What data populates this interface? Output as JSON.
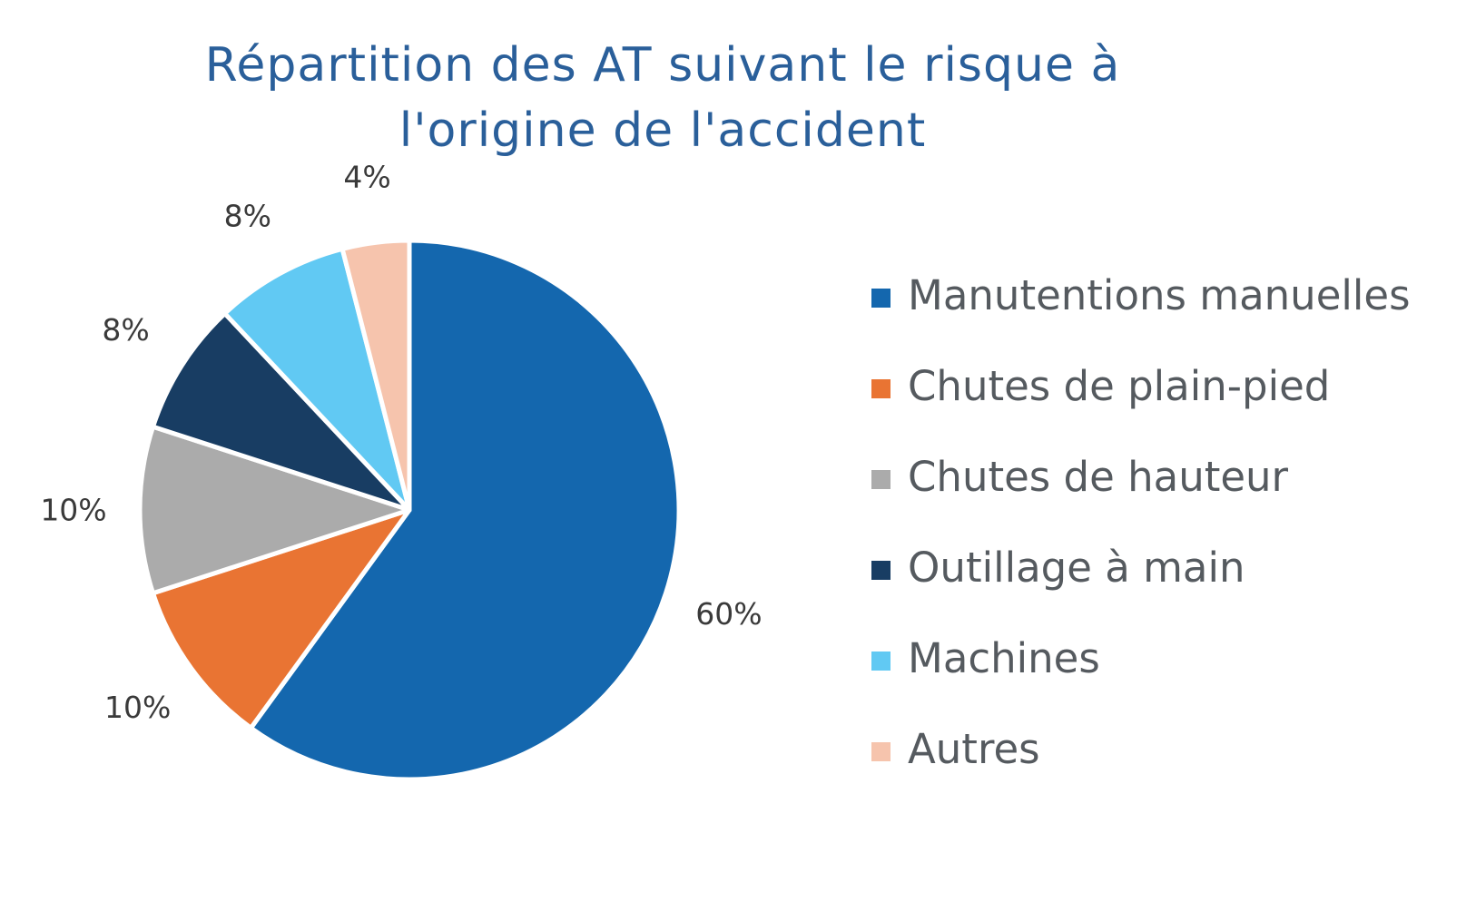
{
  "chart_data": {
    "type": "pie",
    "title": [
      "Répartition des AT suivant le risque à",
      "l'origine de l'accident"
    ],
    "categories": [
      "Manutentions manuelles",
      "Chutes de plain-pied",
      "Chutes de hauteur",
      "Outillage à main",
      "Machines",
      "Autres"
    ],
    "values": [
      60,
      10,
      10,
      8,
      8,
      4
    ],
    "data_labels": [
      "60%",
      "10%",
      "10%",
      "8%",
      "8%",
      "4%"
    ],
    "colors": [
      "#1467ae",
      "#e97433",
      "#ababab",
      "#183d63",
      "#61c9f3",
      "#f6c4ad"
    ],
    "start_angle": "12 o'clock",
    "direction": "clockwise",
    "legend_position": "right"
  }
}
